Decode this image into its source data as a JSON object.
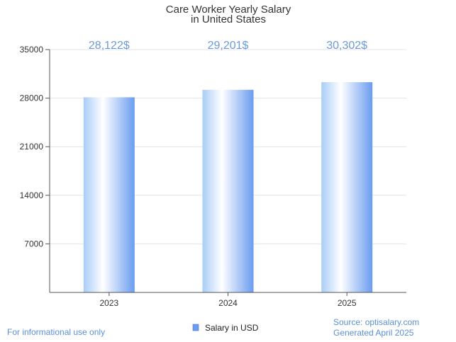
{
  "chart_data": {
    "type": "bar",
    "title": [
      "Care Worker Yearly Salary",
      "in United States"
    ],
    "categories": [
      "2023",
      "2024",
      "2025"
    ],
    "series": [
      {
        "name": "Salary in USD",
        "values": [
          28122,
          29201,
          30302
        ]
      }
    ],
    "data_labels": [
      "28,122$",
      "29,201$",
      "30,302$"
    ],
    "yticks": [
      "7000",
      "14000",
      "21000",
      "28000",
      "35000"
    ],
    "ytick_values": [
      7000,
      14000,
      21000,
      28000,
      35000
    ],
    "ylim": [
      0,
      35000
    ],
    "xlabel": "",
    "ylabel": "",
    "grid": true,
    "legend_position": "bottom-center"
  },
  "footer": {
    "disclaimer": "For informational use only",
    "source": "Source: optisalary.com",
    "generated": "Generated April 2025"
  },
  "colors": {
    "bar_edge": "#6a9cf0",
    "bar_light": "#ffffff",
    "label": "#6d9ad8",
    "grid": "#e3e3e3",
    "axis": "#555555"
  }
}
